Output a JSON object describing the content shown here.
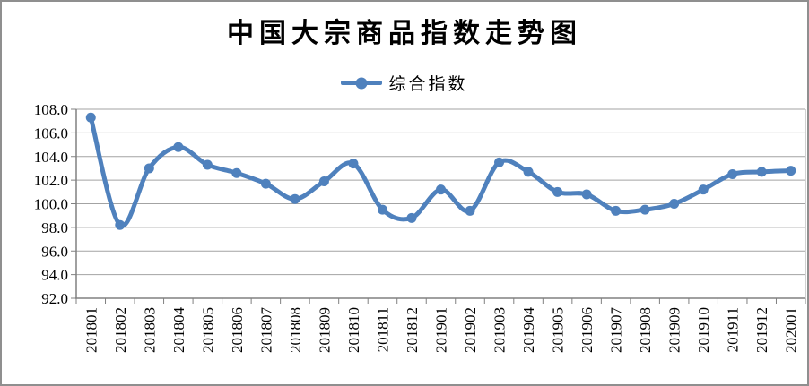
{
  "title": "中国大宗商品指数走势图",
  "legend": {
    "label": "综合指数"
  },
  "colors": {
    "series": "#4F81BD",
    "gridline": "#A3A3A3",
    "axis": "#808080",
    "text": "#000000",
    "frame": "#8F8F8F",
    "background": "#FFFFFF"
  },
  "chart_data": {
    "type": "line",
    "title": "中国大宗商品指数走势图",
    "xlabel": "",
    "ylabel": "",
    "grid": true,
    "legend_position": "top",
    "line_style": "smooth",
    "marker": "circle",
    "ylim": [
      92,
      108
    ],
    "ytick_step": 2,
    "ytick_labels": [
      "108.0",
      "106.0",
      "104.0",
      "102.0",
      "100.0",
      "98.0",
      "96.0",
      "94.0",
      "92.0"
    ],
    "categories": [
      "201801",
      "201802",
      "201803",
      "201804",
      "201805",
      "201806",
      "201807",
      "201808",
      "201809",
      "201810",
      "201811",
      "201812",
      "201901",
      "201902",
      "201903",
      "201904",
      "201905",
      "201906",
      "201907",
      "201908",
      "201909",
      "201910",
      "201911",
      "201912",
      "202001"
    ],
    "series": [
      {
        "name": "综合指数",
        "values": [
          107.3,
          98.2,
          103.0,
          104.8,
          103.3,
          102.6,
          101.7,
          100.4,
          101.9,
          103.4,
          99.5,
          98.8,
          101.2,
          99.4,
          103.5,
          102.7,
          101.0,
          100.8,
          99.4,
          99.5,
          100.0,
          101.2,
          102.5,
          102.7,
          102.8
        ]
      }
    ]
  }
}
